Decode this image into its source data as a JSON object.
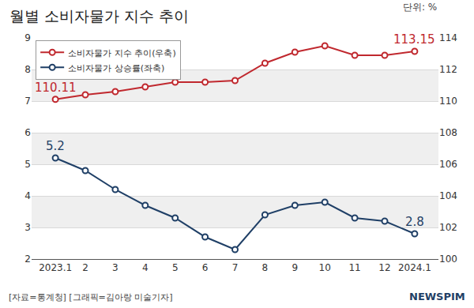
{
  "chart_data": {
    "type": "line",
    "title": "월별 소비자물가 지수 추이",
    "unit": "단위: %",
    "source": "[자료=통계청] [그래픽=김아랑 미술기자]",
    "logo": "NEWSPIM",
    "categories": [
      "2023.1",
      "2",
      "3",
      "4",
      "5",
      "6",
      "7",
      "8",
      "9",
      "10",
      "11",
      "12",
      "2024.1"
    ],
    "series": [
      {
        "name": "소비자물가 지수 추이(우축)",
        "color": "#c0282e",
        "axis": "y2",
        "marker": "circle",
        "values": [
          110.11,
          110.4,
          110.6,
          110.9,
          111.2,
          111.2,
          111.3,
          112.4,
          113.1,
          113.5,
          112.9,
          112.9,
          113.15
        ]
      },
      {
        "name": "소비자물가 상승률(좌축)",
        "color": "#1f3f66",
        "axis": "y",
        "marker": "circle",
        "values": [
          5.2,
          4.8,
          4.2,
          3.7,
          3.3,
          2.7,
          2.3,
          3.4,
          3.7,
          3.8,
          3.3,
          3.2,
          2.8
        ]
      }
    ],
    "annotations": [
      {
        "x": "2023.1",
        "y": 110.11,
        "text": "110.11",
        "axis": "y2"
      },
      {
        "x": "2024.1",
        "y": 113.15,
        "text": "113.15",
        "axis": "y2"
      },
      {
        "x": "2023.1",
        "y": 5.2,
        "text": "5.2",
        "axis": "y"
      },
      {
        "x": "2024.1",
        "y": 2.8,
        "text": "2.8",
        "axis": "y"
      }
    ],
    "ylim": [
      2,
      9
    ],
    "yticks": [
      2,
      3,
      4,
      5,
      6,
      7,
      8,
      9
    ],
    "y2lim": [
      100,
      114
    ],
    "y2ticks": [
      100,
      102,
      104,
      106,
      108,
      110,
      112,
      114
    ],
    "grid": true,
    "legend": "upper left"
  }
}
